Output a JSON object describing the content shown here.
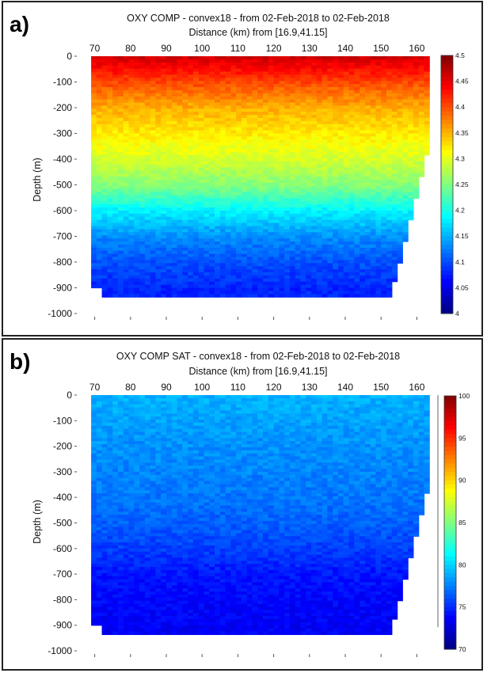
{
  "chart_data": [
    {
      "type": "heatmap",
      "panel_label": "a)",
      "title": "OXY COMP - convex18 - from 02-Feb-2018 to 02-Feb-2018",
      "xlabel": "Distance (km) from [16.9,41.15]",
      "ylabel": "Depth (m)",
      "xlim": [
        65,
        165
      ],
      "ylim": [
        -1000,
        0
      ],
      "x_ticks": [
        "70",
        "80",
        "90",
        "100",
        "110",
        "120",
        "130",
        "140",
        "150",
        "160"
      ],
      "y_ticks": [
        "0",
        "-100",
        "-200",
        "-300",
        "-400",
        "-500",
        "-600",
        "-700",
        "-800",
        "-900",
        "-1000"
      ],
      "colorbar": {
        "min": 4,
        "max": 4.5,
        "ticks": [
          "4.5",
          "4.45",
          "4.4",
          "4.35",
          "4.3",
          "4.25",
          "4.2",
          "4.15",
          "4.1",
          "4.05",
          "4"
        ]
      },
      "colormap": "jet",
      "depth_profile": {
        "depth": [
          0,
          -100,
          -200,
          -300,
          -400,
          -500,
          -600,
          -700,
          -800,
          -900
        ],
        "value": [
          4.46,
          4.4,
          4.35,
          4.32,
          4.29,
          4.25,
          4.18,
          4.13,
          4.1,
          4.08
        ]
      },
      "data_extent": {
        "x_start": 69,
        "x_end": 163,
        "max_depth": -930
      }
    },
    {
      "type": "heatmap",
      "panel_label": "b)",
      "title": "OXY COMP SAT - convex18 - from 02-Feb-2018 to 02-Feb-2018",
      "xlabel": "Distance (km) from [16.9,41.15]",
      "ylabel": "Depth (m)",
      "xlim": [
        65,
        165
      ],
      "ylim": [
        -1000,
        0
      ],
      "x_ticks": [
        "70",
        "80",
        "90",
        "100",
        "110",
        "120",
        "130",
        "140",
        "150",
        "160"
      ],
      "y_ticks": [
        "0",
        "-100",
        "-200",
        "-300",
        "-400",
        "-500",
        "-600",
        "-700",
        "-800",
        "-900",
        "-1000"
      ],
      "colorbar": {
        "min": 70,
        "max": 100,
        "ticks": [
          "100",
          "95",
          "90",
          "85",
          "80",
          "75",
          "70"
        ]
      },
      "colormap": "jet",
      "depth_profile": {
        "depth": [
          0,
          -100,
          -200,
          -300,
          -400,
          -500,
          -600,
          -700,
          -800,
          -900
        ],
        "value": [
          79,
          78.5,
          78,
          77.6,
          77.2,
          76.5,
          75.5,
          74.3,
          73.8,
          73.5
        ]
      },
      "data_extent": {
        "x_start": 69,
        "x_end": 163,
        "max_depth": -930
      }
    }
  ]
}
